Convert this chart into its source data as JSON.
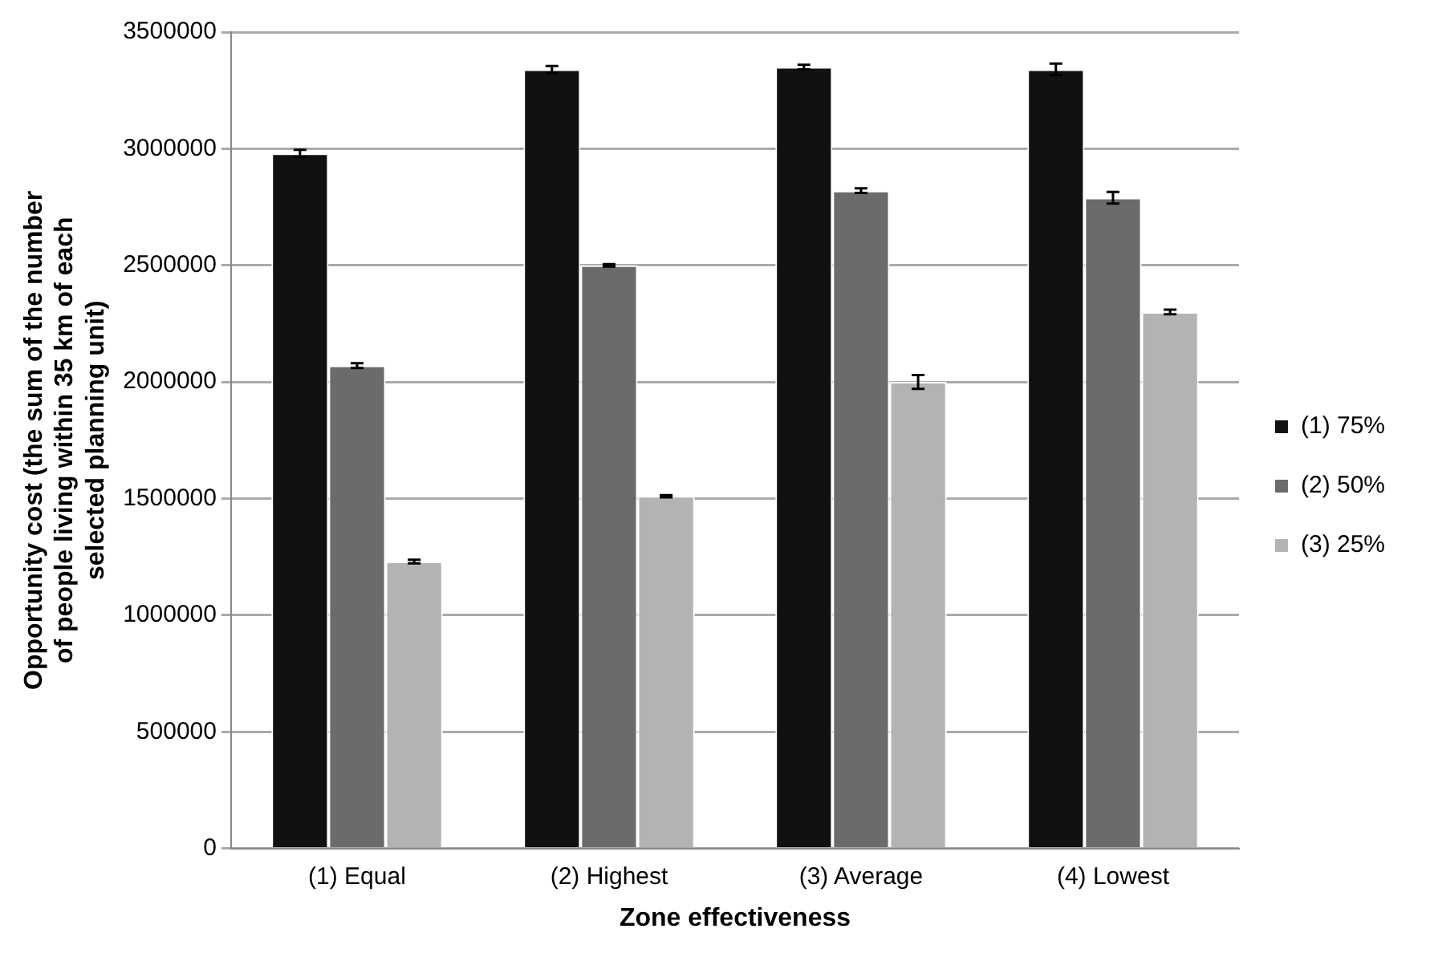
{
  "chart_data": {
    "type": "bar",
    "xlabel": "Zone effectiveness",
    "ylabel": "Opportunity cost (the sum of the number of people living within 35 km of each selected planning unit)",
    "categories": [
      "(1) Equal",
      "(2) Highest",
      "(3) Average",
      "(4) Lowest"
    ],
    "series": [
      {
        "name": "(1) 75%",
        "color": "#111111",
        "values": [
          2980000,
          3340000,
          3350000,
          3340000
        ],
        "errors": [
          15000,
          15000,
          10000,
          25000
        ]
      },
      {
        "name": "(2) 50%",
        "color": "#6b6b6b",
        "values": [
          2070000,
          2500000,
          2820000,
          2790000
        ],
        "errors": [
          10000,
          5000,
          10000,
          25000
        ]
      },
      {
        "name": "(3) 25%",
        "color": "#b3b3b3",
        "values": [
          1230000,
          1510000,
          2000000,
          2300000
        ],
        "errors": [
          8000,
          5000,
          30000,
          10000
        ]
      }
    ],
    "ylim": [
      0,
      3500000
    ],
    "yticks": [
      0,
      500000,
      1000000,
      1500000,
      2000000,
      2500000,
      3000000,
      3500000
    ],
    "grid": "y",
    "legend": "right"
  }
}
